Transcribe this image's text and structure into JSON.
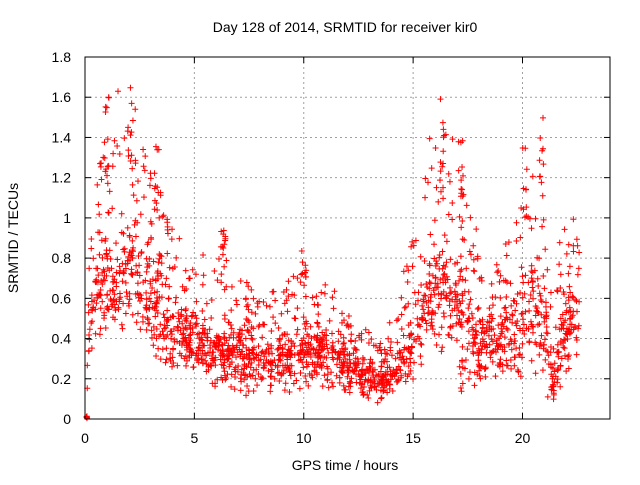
{
  "chart_data": {
    "type": "scatter",
    "title": "Day 128 of 2014, SRMTID for receiver kir0",
    "xlabel": "GPS time / hours",
    "ylabel": "SRMTID / TECUs",
    "xlim": [
      0,
      24
    ],
    "ylim": [
      0,
      1.8
    ],
    "xticks": [
      0,
      5,
      10,
      15,
      20
    ],
    "xtick_labels": [
      "0",
      "5",
      "10",
      "15",
      "20"
    ],
    "yticks": [
      0,
      0.2,
      0.4,
      0.6,
      0.8,
      1.0,
      1.2,
      1.4,
      1.6,
      1.8
    ],
    "ytick_labels": [
      "0",
      "0.2",
      "0.4",
      "0.6",
      "0.8",
      "1",
      "1.2",
      "1.4",
      "1.6",
      "1.8"
    ],
    "grid": true,
    "marker": "+",
    "series_color": "#ff0000",
    "points_note": "Dense cloud of ~2000 '+' markers sampled between 0 and 22.6 hours; envelope values below describe the observed spread (hour, typical low, typical high, max).",
    "envelope": [
      {
        "x": 0.0,
        "low": 0.0,
        "high": 0.02,
        "max": 0.02
      },
      {
        "x": 0.3,
        "low": 0.35,
        "high": 0.85,
        "max": 1.35
      },
      {
        "x": 1.0,
        "low": 0.35,
        "high": 0.95,
        "max": 1.61
      },
      {
        "x": 2.2,
        "low": 0.4,
        "high": 1.05,
        "max": 1.66
      },
      {
        "x": 3.2,
        "low": 0.25,
        "high": 0.95,
        "max": 1.36
      },
      {
        "x": 4.0,
        "low": 0.2,
        "high": 0.7,
        "max": 1.0
      },
      {
        "x": 5.0,
        "low": 0.2,
        "high": 0.55,
        "max": 0.8
      },
      {
        "x": 6.2,
        "low": 0.15,
        "high": 0.55,
        "max": 0.96
      },
      {
        "x": 8.0,
        "low": 0.08,
        "high": 0.45,
        "max": 0.65
      },
      {
        "x": 10.0,
        "low": 0.15,
        "high": 0.55,
        "max": 0.85
      },
      {
        "x": 12.0,
        "low": 0.1,
        "high": 0.45,
        "max": 0.55
      },
      {
        "x": 13.5,
        "low": 0.05,
        "high": 0.3,
        "max": 0.4
      },
      {
        "x": 14.8,
        "low": 0.15,
        "high": 0.5,
        "max": 1.0
      },
      {
        "x": 15.8,
        "low": 0.3,
        "high": 0.95,
        "max": 1.5
      },
      {
        "x": 16.3,
        "low": 0.3,
        "high": 1.0,
        "max": 1.65
      },
      {
        "x": 17.2,
        "low": 0.1,
        "high": 1.0,
        "max": 1.44
      },
      {
        "x": 18.2,
        "low": 0.15,
        "high": 0.55,
        "max": 0.75
      },
      {
        "x": 19.0,
        "low": 0.2,
        "high": 0.6,
        "max": 0.8
      },
      {
        "x": 20.2,
        "low": 0.15,
        "high": 0.9,
        "max": 1.35
      },
      {
        "x": 20.9,
        "low": 0.15,
        "high": 0.9,
        "max": 1.52
      },
      {
        "x": 21.4,
        "low": 0.02,
        "high": 0.3,
        "max": 0.6
      },
      {
        "x": 22.0,
        "low": 0.2,
        "high": 0.8,
        "max": 1.25
      },
      {
        "x": 22.6,
        "low": 0.3,
        "high": 0.7,
        "max": 0.9
      }
    ],
    "point_count": 2000
  }
}
